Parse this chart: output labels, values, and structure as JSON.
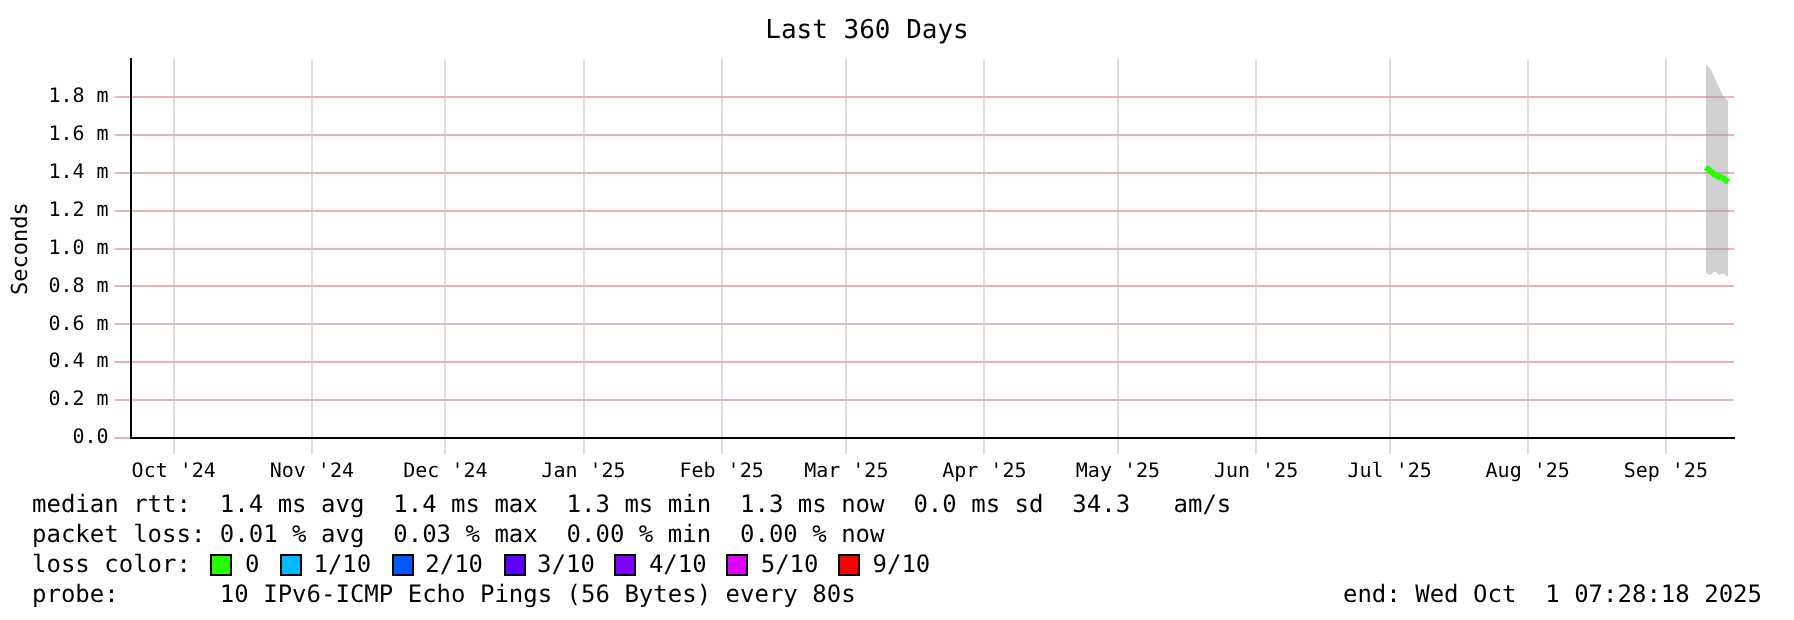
{
  "chart_data": {
    "type": "line",
    "title": "Last 360 Days",
    "ylabel": "Seconds",
    "legend_title": "loss color:",
    "legend": "bottom",
    "grid": true,
    "x": [
      "2025-09-25",
      "2025-09-26",
      "2025-09-27",
      "2025-09-28",
      "2025-09-29",
      "2025-09-30"
    ],
    "xlim": [
      "2024-10-06T07:28",
      "2025-10-01T07:28"
    ],
    "xticks": [
      {
        "value": "2024-10-16",
        "label": "Oct '24"
      },
      {
        "value": "2024-11-16",
        "label": "Nov '24"
      },
      {
        "value": "2024-12-16",
        "label": "Dec '24"
      },
      {
        "value": "2025-01-16",
        "label": "Jan '25"
      },
      {
        "value": "2025-02-16",
        "label": "Feb '25"
      },
      {
        "value": "2025-03-16",
        "label": "Mar '25"
      },
      {
        "value": "2025-04-16",
        "label": "Apr '25"
      },
      {
        "value": "2025-05-16",
        "label": "May '25"
      },
      {
        "value": "2025-06-16",
        "label": "Jun '25"
      },
      {
        "value": "2025-07-16",
        "label": "Jul '25"
      },
      {
        "value": "2025-08-16",
        "label": "Aug '25"
      },
      {
        "value": "2025-09-16",
        "label": "Sep '25"
      }
    ],
    "ylim": [
      0,
      2.0
    ],
    "yticks": [
      {
        "value": 0,
        "label": "0.0"
      },
      {
        "value": 0.2,
        "label": "0.2 m"
      },
      {
        "value": 0.4,
        "label": "0.4 m"
      },
      {
        "value": 0.6,
        "label": "0.6 m"
      },
      {
        "value": 0.8,
        "label": "0.8 m"
      },
      {
        "value": 1.0,
        "label": "1.0 m"
      },
      {
        "value": 1.2,
        "label": "1.2 m"
      },
      {
        "value": 1.4,
        "label": "1.4 m"
      },
      {
        "value": 1.6,
        "label": "1.6 m"
      },
      {
        "value": 1.8,
        "label": "1.8 m"
      }
    ],
    "series": [
      {
        "name": "0",
        "color": "#26ff00",
        "values": [
          1.43,
          1.41,
          1.39,
          1.38,
          1.37,
          1.35
        ],
        "lower": [
          0.87,
          0.86,
          0.88,
          0.86,
          0.87,
          0.85
        ],
        "upper": [
          1.97,
          1.95,
          1.9,
          1.85,
          1.8,
          1.78
        ]
      },
      {
        "name": "1/10",
        "color": "#00b8ff",
        "values": [
          null,
          null,
          null,
          null,
          null,
          null
        ]
      },
      {
        "name": "2/10",
        "color": "#0059ff",
        "values": [
          null,
          null,
          null,
          null,
          null,
          null
        ]
      },
      {
        "name": "3/10",
        "color": "#5e00ff",
        "values": [
          null,
          null,
          null,
          null,
          null,
          null
        ]
      },
      {
        "name": "4/10",
        "color": "#7e00ff",
        "values": [
          null,
          null,
          null,
          null,
          null,
          null
        ]
      },
      {
        "name": "5/10",
        "color": "#dd00ff",
        "values": [
          null,
          null,
          null,
          null,
          null,
          null
        ]
      },
      {
        "name": "9/10",
        "color": "#ff0000",
        "values": [
          null,
          null,
          null,
          null,
          null,
          null
        ]
      }
    ],
    "annotations": [
      "median rtt:  1.4 ms avg  1.4 ms max  1.3 ms min  1.3 ms now  0.0 ms sd  34.3   am/s",
      "packet loss: 0.01 % avg  0.03 % max  0.00 % min  0.00 % now",
      "probe:       10 IPv6-ICMP Echo Pings (56 Bytes) every 80s",
      "end: Wed Oct  1 07:28:18 2025"
    ]
  }
}
